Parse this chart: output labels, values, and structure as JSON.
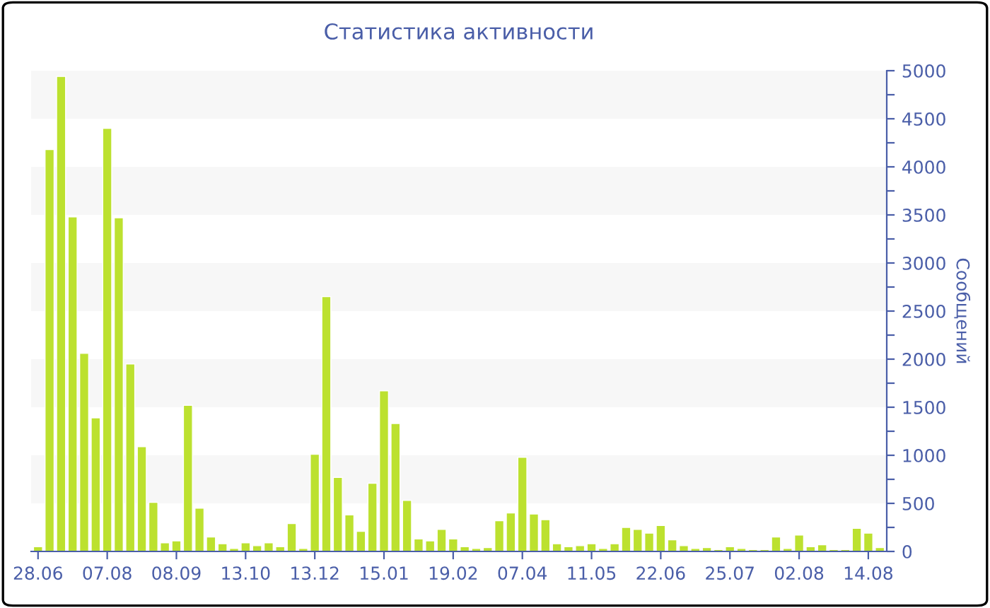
{
  "chart_data": {
    "type": "bar",
    "title": "Статистика активности",
    "ylabel": "Сообщений",
    "categories": [
      "28.06",
      null,
      null,
      null,
      null,
      null,
      "07.08",
      null,
      null,
      null,
      null,
      null,
      "08.09",
      null,
      null,
      null,
      null,
      null,
      "13.10",
      null,
      null,
      null,
      null,
      null,
      "13.12",
      null,
      null,
      null,
      null,
      null,
      "15.01",
      null,
      null,
      null,
      null,
      null,
      "19.02",
      null,
      null,
      null,
      null,
      null,
      "07.04",
      null,
      null,
      null,
      null,
      null,
      "11.05",
      null,
      null,
      null,
      null,
      null,
      "22.06",
      null,
      null,
      null,
      null,
      null,
      "25.07",
      null,
      null,
      null,
      null,
      null,
      "02.08",
      null,
      null,
      null,
      null,
      null,
      "14.08",
      null
    ],
    "values": [
      50,
      4180,
      4940,
      3480,
      2060,
      1390,
      4400,
      3470,
      1950,
      1090,
      510,
      90,
      110,
      1520,
      450,
      150,
      80,
      30,
      90,
      60,
      90,
      50,
      290,
      30,
      1010,
      2650,
      770,
      380,
      210,
      710,
      1670,
      1330,
      530,
      130,
      110,
      230,
      130,
      50,
      30,
      40,
      320,
      400,
      980,
      390,
      330,
      80,
      50,
      60,
      80,
      30,
      80,
      250,
      230,
      190,
      270,
      120,
      60,
      30,
      40,
      20,
      50,
      30,
      20,
      20,
      150,
      30,
      170,
      50,
      70,
      20,
      20,
      240,
      190,
      40
    ],
    "color": "#bce12f",
    "ylim": [
      0,
      5000
    ],
    "yticks": [
      0,
      {
        "value": 250,
        "label": null
      },
      500,
      {
        "value": 750,
        "label": null
      },
      1000,
      {
        "value": 1250,
        "label": null
      },
      1500,
      {
        "value": 1750,
        "label": null
      },
      2000,
      {
        "value": 2250,
        "label": null
      },
      2500,
      {
        "value": 2750,
        "label": null
      },
      3000,
      {
        "value": 3250,
        "label": null
      },
      3500,
      {
        "value": 3750,
        "label": null
      },
      4000,
      {
        "value": 4250,
        "label": null
      },
      4500,
      {
        "value": 4750,
        "label": null
      },
      5000
    ],
    "bands": [
      {
        "axis": "y",
        "from": 500,
        "to": 1000,
        "color": "#f7f7f7"
      },
      {
        "axis": "y",
        "from": 1500,
        "to": 2000,
        "color": "#f7f7f7"
      },
      {
        "axis": "y",
        "from": 2500,
        "to": 3000,
        "color": "#f7f7f7"
      },
      {
        "axis": "y",
        "from": 3500,
        "to": 4000,
        "color": "#f7f7f7"
      },
      {
        "axis": "y",
        "from": 4500,
        "to": 5000,
        "color": "#f7f7f7"
      }
    ]
  }
}
